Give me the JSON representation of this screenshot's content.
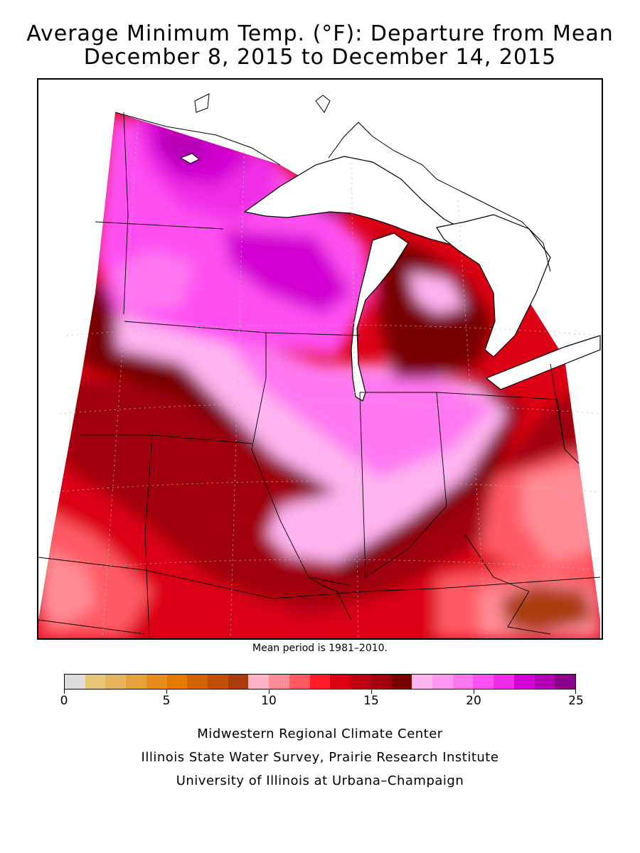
{
  "title": {
    "line1": "Average Minimum Temp. (°F): Departure from Mean",
    "line2": "December 8, 2015 to December 14, 2015"
  },
  "map": {
    "region": "Midwest US and Great Lakes",
    "variable": "Average minimum temperature departure from mean",
    "units": "°F",
    "min_departure_shown": 6,
    "max_departure_shown": 25,
    "colors": {
      "water": "#ffffff",
      "outline": "#000000",
      "grid": "#bbbbbb"
    }
  },
  "note": "Mean period is 1981–2010.",
  "legend": {
    "colors": [
      "#dcdcdc",
      "#e6c878",
      "#e6b45a",
      "#e6a03c",
      "#e68c1e",
      "#e67800",
      "#d26400",
      "#be5000",
      "#aa3c0a",
      "#ffb4c8",
      "#ff8c96",
      "#ff5a64",
      "#ff1e28",
      "#dc0014",
      "#be0014",
      "#a0000f",
      "#780000",
      "#ffb4f0",
      "#ff96f0",
      "#ff78f0",
      "#ff50f0",
      "#f02de6",
      "#d200d2",
      "#b400b4",
      "#8c008c"
    ],
    "tick_values": [
      0,
      5,
      10,
      15,
      20,
      25
    ],
    "tick_labels": [
      "0",
      "5",
      "10",
      "15",
      "20",
      "25"
    ]
  },
  "credits": {
    "line1": "Midwestern Regional Climate Center",
    "line2": "Illinois State Water Survey, Prairie Research Institute",
    "line3": "University of Illinois at Urbana–Champaign"
  }
}
